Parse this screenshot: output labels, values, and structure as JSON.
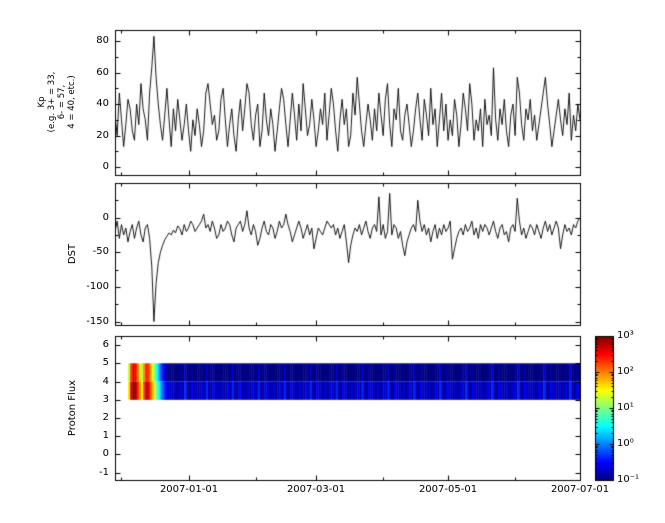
{
  "figure": {
    "background_color": "#ffffff",
    "line_color": "#000000",
    "frame_color": "#000000"
  },
  "chart_data": {
    "type": "multi-panel",
    "panel_count": 3,
    "x": {
      "start_date": "2006-11-28",
      "end_date": "2007-07-01",
      "span_days": 215,
      "sample_interval_days": 1,
      "tick_labels": [
        "2007-01-01",
        "2007-03-01",
        "2007-05-01",
        "2007-07-01"
      ],
      "tick_days_from_start": [
        34,
        93,
        154,
        215
      ],
      "minor_tick_days_from_start": [
        3,
        65,
        124,
        185
      ]
    },
    "panels": [
      {
        "name": "kp",
        "type": "line",
        "ylabel_lines": [
          "Kp",
          "(e.g. 3+ = 33,",
          "6- = 57,",
          "4 = 40, etc.)"
        ],
        "ylim": [
          -5,
          87
        ],
        "yticks": [
          0,
          20,
          40,
          60,
          80
        ],
        "yticks_minor": [
          10,
          30,
          50,
          70
        ],
        "line_color": "#000000",
        "values": [
          33,
          20,
          47,
          30,
          13,
          27,
          43,
          37,
          23,
          17,
          40,
          27,
          53,
          37,
          30,
          17,
          47,
          63,
          83,
          57,
          40,
          27,
          17,
          33,
          50,
          30,
          13,
          37,
          23,
          43,
          30,
          17,
          27,
          40,
          23,
          10,
          30,
          20,
          37,
          27,
          13,
          23,
          47,
          53,
          40,
          27,
          33,
          17,
          23,
          43,
          50,
          30,
          13,
          27,
          37,
          20,
          10,
          30,
          43,
          23,
          37,
          53,
          47,
          27,
          17,
          33,
          40,
          13,
          23,
          47,
          30,
          20,
          37,
          27,
          10,
          23,
          37,
          50,
          43,
          27,
          13,
          30,
          47,
          33,
          17,
          40,
          23,
          53,
          37,
          20,
          27,
          43,
          30,
          13,
          23,
          37,
          27,
          47,
          17,
          33,
          50,
          40,
          23,
          10,
          30,
          43,
          27,
          37,
          13,
          20,
          47,
          33,
          57,
          40,
          23,
          13,
          27,
          40,
          30,
          17,
          37,
          23,
          47,
          33,
          20,
          43,
          53,
          27,
          13,
          37,
          30,
          50,
          23,
          17,
          33,
          40,
          27,
          13,
          23,
          37,
          47,
          30,
          17,
          43,
          33,
          20,
          50,
          27,
          37,
          13,
          30,
          47,
          23,
          40,
          17,
          30,
          20,
          43,
          33,
          13,
          27,
          47,
          37,
          23,
          53,
          40,
          17,
          30,
          23,
          37,
          13,
          43,
          27,
          33,
          20,
          63,
          30,
          17,
          37,
          27,
          43,
          23,
          13,
          33,
          40,
          20,
          57,
          47,
          27,
          17,
          37,
          30,
          43,
          23,
          33,
          17,
          27,
          37,
          47,
          57,
          40,
          27,
          13,
          23,
          33,
          43,
          30,
          20,
          37,
          27,
          47,
          17,
          33,
          23,
          40,
          30
        ]
      },
      {
        "name": "dst",
        "type": "line",
        "ylabel_lines": [
          "DST"
        ],
        "ylim": [
          -155,
          50
        ],
        "yticks": [
          -150,
          -100,
          -50,
          0
        ],
        "yticks_minor": [
          -125,
          -75,
          -25,
          25
        ],
        "line_color": "#000000",
        "values": [
          -20,
          -5,
          -30,
          -10,
          -25,
          -15,
          -35,
          -20,
          -10,
          -30,
          -15,
          -5,
          -25,
          -35,
          -15,
          -10,
          -30,
          -70,
          -150,
          -95,
          -65,
          -50,
          -40,
          -32,
          -27,
          -22,
          -25,
          -18,
          -22,
          -12,
          -16,
          -25,
          -10,
          -20,
          -15,
          -5,
          -10,
          -20,
          -15,
          -10,
          -5,
          5,
          -15,
          -10,
          -20,
          -5,
          -15,
          -30,
          -25,
          -10,
          -20,
          -15,
          -5,
          -10,
          -25,
          -35,
          -15,
          -10,
          -5,
          -20,
          -10,
          10,
          -15,
          -25,
          -10,
          -20,
          -40,
          -30,
          -15,
          -5,
          -20,
          -25,
          -10,
          -15,
          -30,
          -20,
          -5,
          -15,
          -10,
          5,
          -10,
          -20,
          -35,
          -25,
          -15,
          -5,
          -15,
          -30,
          -20,
          -10,
          -25,
          -15,
          -45,
          -30,
          -15,
          -20,
          -25,
          -15,
          -5,
          -10,
          -15,
          -10,
          -25,
          -15,
          -30,
          -20,
          -10,
          -35,
          -65,
          -40,
          -25,
          -15,
          -20,
          -10,
          -25,
          -15,
          -5,
          -20,
          -30,
          -15,
          -10,
          -20,
          30,
          -25,
          -10,
          -30,
          -20,
          35,
          -25,
          -10,
          -15,
          -30,
          -20,
          -40,
          -55,
          -35,
          -25,
          -15,
          -10,
          -20,
          25,
          -5,
          -20,
          -10,
          -25,
          -15,
          -35,
          -20,
          -10,
          -30,
          -15,
          -25,
          -10,
          -20,
          -15,
          -5,
          -60,
          -45,
          -30,
          -20,
          -15,
          -25,
          -10,
          -20,
          -15,
          -5,
          -25,
          -15,
          -30,
          -10,
          -20,
          -10,
          -15,
          -25,
          -15,
          -5,
          -20,
          -30,
          -15,
          -10,
          -25,
          -20,
          -35,
          -15,
          -10,
          -20,
          28,
          -5,
          -25,
          -15,
          -30,
          -20,
          -10,
          -15,
          -25,
          -10,
          -20,
          -30,
          -15,
          -5,
          -20,
          -10,
          -25,
          -15,
          -5,
          -15,
          -45,
          -25,
          -10,
          -20,
          -15,
          -25,
          -10,
          -15,
          -5,
          0
        ]
      },
      {
        "name": "proton-flux",
        "type": "heatmap",
        "ylabel_lines": [
          "Proton Flux"
        ],
        "ylim": [
          -1.4,
          6.5
        ],
        "yticks": [
          -1,
          0,
          1,
          2,
          3,
          4,
          5,
          6
        ],
        "band_y": [
          3,
          5
        ],
        "colormap": "jet",
        "scale": "log",
        "clim": [
          0.1,
          1000
        ],
        "colorbar_labels": [
          "10³",
          "10²",
          "10¹",
          "10⁰",
          "10⁻¹"
        ],
        "values": [
          0,
          0,
          0,
          0,
          0,
          0,
          40,
          400,
          900,
          700,
          250,
          80,
          30,
          200,
          600,
          450,
          150,
          60,
          20,
          8,
          3,
          1.2,
          0.6,
          0.35,
          0.25,
          0.2,
          0.15,
          0.22,
          0.13,
          0.18,
          0.25,
          0.14,
          0.45,
          0.16,
          0.12,
          0.3,
          0.15,
          0.22,
          0.13,
          0.18,
          0.25,
          0.14,
          0.45,
          0.16,
          0.12,
          0.3,
          0.2,
          0.17,
          0.15,
          0.22,
          0.13,
          0.18,
          0.25,
          0.14,
          0.45,
          0.16,
          0.12,
          0.3,
          0.2,
          0.17,
          0.15,
          0.22,
          0.13,
          0.18,
          0.25,
          0.14,
          0.45,
          0.16,
          0.12,
          0.3,
          0.2,
          0.17,
          0.15,
          0.22,
          0.13,
          0.18,
          0.25,
          0.14,
          0.45,
          0.16,
          0.12,
          0.3,
          0.2,
          0.17,
          0.15,
          0.22,
          0.13,
          0.18,
          0.25,
          0.14,
          0.45,
          0.16,
          0.12,
          0.3,
          0.2,
          0.17,
          0.15,
          0.22,
          0.13,
          0.18,
          0.25,
          0.14,
          0.45,
          0.16,
          0.12,
          0.3,
          0.2,
          0.17,
          0.15,
          0.22,
          0.13,
          0.18,
          0.25,
          0.14,
          0.45,
          0.16,
          0.12,
          0.3,
          0.2,
          0.17,
          0.15,
          0.22,
          0.13,
          0.18,
          0.25,
          0.14,
          0.45,
          0.16,
          0.12,
          0.3,
          0.2,
          0.17,
          0.15,
          0.22,
          0.13,
          0.18,
          0.25,
          0.14,
          0.45,
          0.16,
          0.12,
          0.3,
          0.2,
          0.17,
          0.15,
          0.22,
          0.13,
          0.18,
          0.25,
          0.14,
          0.45,
          0.16,
          0.12,
          0.3,
          0.2,
          0.17,
          0.15,
          0.22,
          0.13,
          0.18,
          0.25,
          0.14,
          0.45,
          0.16,
          0.12,
          0.3,
          0.2,
          0.17,
          0.15,
          0.22,
          0.13,
          0.18,
          0.25,
          0.14,
          0.45,
          0.16,
          0.12,
          0.3,
          0.2,
          0.17,
          0.15,
          0.22,
          0.13,
          0.18,
          0.25,
          0.14,
          0.45,
          0.16,
          0.12,
          0.3,
          0.2,
          0.17,
          0.15,
          0.22,
          0.13,
          0.18,
          0.25,
          0.14,
          0.45,
          0.16,
          0.12,
          0.3,
          0.2,
          0.17,
          0.15,
          0.22,
          0.13,
          0.18,
          0.25,
          0.14,
          0.45,
          0.16,
          0.12,
          0.3,
          0.2,
          0.17
        ]
      }
    ]
  }
}
